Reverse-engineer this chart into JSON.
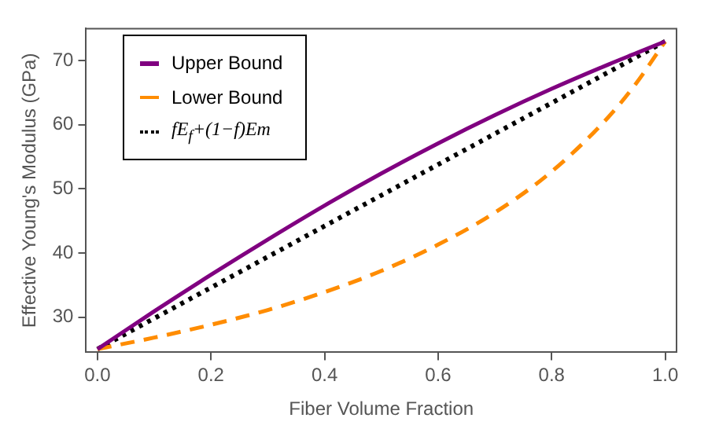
{
  "chart_data": {
    "type": "line",
    "xlabel": "Fiber Volume Fraction",
    "ylabel": "Effective Young's Modulus (GPa)",
    "xlim": [
      -0.02,
      1.02
    ],
    "ylim": [
      24.5,
      75
    ],
    "xticks": [
      {
        "value": 0,
        "label": "0.0"
      },
      0.2,
      0.4,
      0.6,
      0.8,
      {
        "value": 1,
        "label": "1.0"
      }
    ],
    "yticks": [
      30,
      40,
      50,
      60,
      70
    ],
    "grid": false,
    "legend": "top left",
    "marker": "none",
    "x": [
      0,
      0.1,
      0.2,
      0.3,
      0.4,
      0.5,
      0.6,
      0.7,
      0.8,
      0.9,
      0.95,
      1
    ],
    "series": [
      {
        "name": "Upper Bound",
        "color": "#800080",
        "line_style": "solid",
        "values": [
          25,
          30.9,
          36.6,
          42.1,
          47.4,
          52.4,
          57.1,
          61.5,
          65.6,
          69.4,
          71.2,
          73
        ]
      },
      {
        "name": "Lower Bound",
        "color": "#ff8c00",
        "line_style": "dashed",
        "values": [
          25,
          26.8,
          28.8,
          31.1,
          33.9,
          37.2,
          41.3,
          46.3,
          52.7,
          61.2,
          66.6,
          73
        ]
      },
      {
        "name": "fE$_{f}$+(1−f)Em",
        "color": "#000000",
        "line_style": "dotted",
        "values": [
          25,
          29.8,
          34.6,
          39.4,
          44.2,
          49,
          53.8,
          58.6,
          63.4,
          68.2,
          70.6,
          73
        ]
      }
    ]
  }
}
